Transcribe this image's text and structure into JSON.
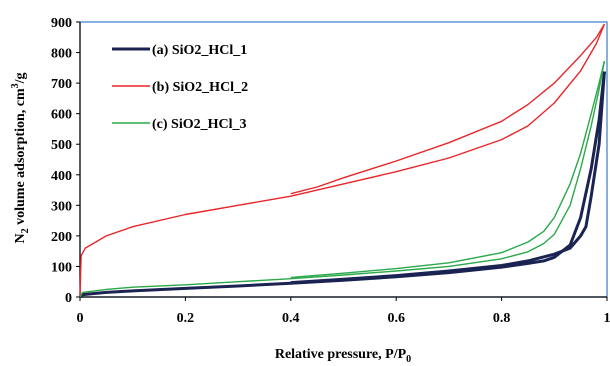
{
  "chart_data": {
    "type": "line",
    "xlabel": "Relative pressure, P/P0",
    "ylabel": "N2 volume adsorption, cm3/g",
    "xlim": [
      0,
      1
    ],
    "ylim": [
      0,
      900
    ],
    "x_ticks": [
      "0",
      "0.2",
      "0.4",
      "0.6",
      "0.8",
      "1"
    ],
    "y_ticks": [
      "0",
      "100",
      "200",
      "300",
      "400",
      "500",
      "600",
      "700",
      "800",
      "900"
    ],
    "grid": false,
    "legend_position": "top-left",
    "series": [
      {
        "name": "(a) SiO2_HCl_1",
        "color": "#1a2352",
        "adsorption": [
          [
            0,
            0
          ],
          [
            0.005,
            8
          ],
          [
            0.05,
            15
          ],
          [
            0.1,
            20
          ],
          [
            0.2,
            28
          ],
          [
            0.3,
            36
          ],
          [
            0.4,
            45
          ],
          [
            0.5,
            55
          ],
          [
            0.6,
            66
          ],
          [
            0.7,
            80
          ],
          [
            0.8,
            98
          ],
          [
            0.85,
            110
          ],
          [
            0.88,
            118
          ],
          [
            0.9,
            130
          ],
          [
            0.93,
            170
          ],
          [
            0.95,
            260
          ],
          [
            0.97,
            420
          ],
          [
            0.985,
            580
          ],
          [
            0.995,
            738
          ]
        ],
        "desorption": [
          [
            0.995,
            738
          ],
          [
            0.985,
            500
          ],
          [
            0.97,
            330
          ],
          [
            0.96,
            230
          ],
          [
            0.95,
            200
          ],
          [
            0.93,
            160
          ],
          [
            0.9,
            140
          ],
          [
            0.85,
            118
          ],
          [
            0.8,
            103
          ],
          [
            0.7,
            85
          ],
          [
            0.6,
            70
          ],
          [
            0.5,
            58
          ],
          [
            0.4,
            47
          ]
        ]
      },
      {
        "name": "(b) SiO2_HCl_2",
        "color": "#e8262a",
        "adsorption": [
          [
            0,
            0
          ],
          [
            0.002,
            135
          ],
          [
            0.01,
            160
          ],
          [
            0.05,
            200
          ],
          [
            0.1,
            230
          ],
          [
            0.2,
            270
          ],
          [
            0.3,
            300
          ],
          [
            0.4,
            330
          ],
          [
            0.45,
            350
          ],
          [
            0.5,
            370
          ],
          [
            0.6,
            410
          ],
          [
            0.7,
            455
          ],
          [
            0.8,
            515
          ],
          [
            0.85,
            560
          ],
          [
            0.9,
            635
          ],
          [
            0.95,
            740
          ],
          [
            0.98,
            830
          ],
          [
            0.995,
            893
          ]
        ],
        "desorption": [
          [
            0.995,
            893
          ],
          [
            0.98,
            850
          ],
          [
            0.95,
            790
          ],
          [
            0.9,
            700
          ],
          [
            0.85,
            630
          ],
          [
            0.8,
            575
          ],
          [
            0.7,
            505
          ],
          [
            0.6,
            445
          ],
          [
            0.5,
            390
          ],
          [
            0.45,
            360
          ],
          [
            0.4,
            338
          ]
        ]
      },
      {
        "name": "(c) SiO2_HCl_3",
        "color": "#2aa84a",
        "adsorption": [
          [
            0,
            0
          ],
          [
            0.005,
            15
          ],
          [
            0.05,
            25
          ],
          [
            0.1,
            32
          ],
          [
            0.2,
            40
          ],
          [
            0.3,
            50
          ],
          [
            0.4,
            60
          ],
          [
            0.5,
            72
          ],
          [
            0.6,
            85
          ],
          [
            0.7,
            100
          ],
          [
            0.8,
            125
          ],
          [
            0.85,
            148
          ],
          [
            0.88,
            175
          ],
          [
            0.9,
            205
          ],
          [
            0.93,
            300
          ],
          [
            0.95,
            420
          ],
          [
            0.97,
            560
          ],
          [
            0.985,
            680
          ],
          [
            0.995,
            772
          ]
        ],
        "desorption": [
          [
            0.995,
            772
          ],
          [
            0.985,
            700
          ],
          [
            0.97,
            600
          ],
          [
            0.95,
            470
          ],
          [
            0.93,
            370
          ],
          [
            0.9,
            260
          ],
          [
            0.88,
            215
          ],
          [
            0.85,
            180
          ],
          [
            0.8,
            145
          ],
          [
            0.7,
            112
          ],
          [
            0.6,
            93
          ],
          [
            0.5,
            78
          ],
          [
            0.4,
            64
          ]
        ]
      }
    ]
  },
  "labels": {
    "x_title_main": "Relative pressure, P/P",
    "x_title_sub": "0",
    "y_title_a": "N",
    "y_title_sub": "2",
    "y_title_b": " volume adsorption, cm",
    "y_title_sup": "3",
    "y_title_c": "/g"
  }
}
